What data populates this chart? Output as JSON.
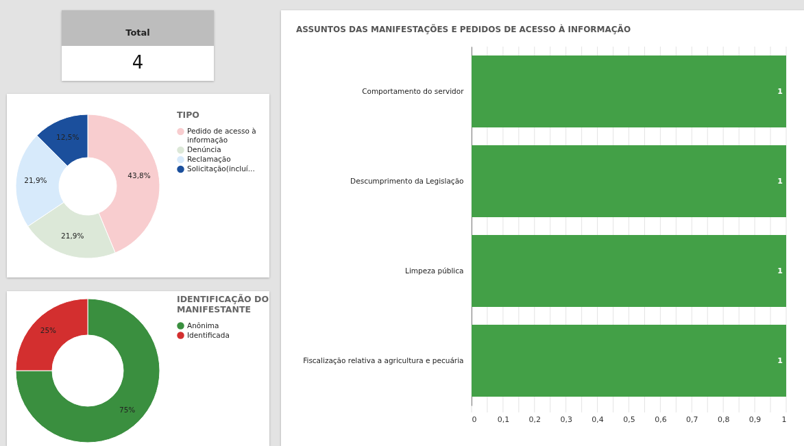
{
  "chart_data": [
    {
      "type": "other",
      "title": "Total",
      "values": [
        4
      ],
      "data_labels": true
    },
    {
      "type": "donut",
      "legend_title": "TIPO",
      "legend": "right",
      "categories": [
        "Pedido de acesso à informação",
        "Denúncia",
        "Reclamação",
        "Solicitação(incluí..."
      ],
      "values": [
        43.8,
        21.9,
        21.9,
        12.5
      ],
      "colors": [
        "#f8cdcf",
        "#dce8d8",
        "#d7eafb",
        "#1b4f9c"
      ],
      "value_labels": [
        "43,8%",
        "21,9%",
        "21,9%",
        "12,5%"
      ]
    },
    {
      "type": "donut",
      "legend_title": "IDENTIFICAÇÃO DO MANIFESTANTE",
      "legend": "right",
      "categories": [
        "Anônima",
        "Identificada"
      ],
      "values": [
        75,
        25
      ],
      "colors": [
        "#3a8f3f",
        "#d32f2f"
      ],
      "value_labels": [
        "75%",
        "25%"
      ]
    },
    {
      "type": "bar",
      "orientation": "horizontal",
      "title": "ASSUNTOS DAS MANIFESTAÇÕES E PEDIDOS DE ACESSO À INFORMAÇÃO",
      "categories": [
        "Comportamento do servidor",
        "Descumprimento da Legislação",
        "Limpeza pública",
        "Fiscalização relativa a agricultura e pecuária"
      ],
      "values": [
        1,
        1,
        1,
        1
      ],
      "colors": [
        "#43a047",
        "#43a047",
        "#43a047",
        "#43a047"
      ],
      "data_labels": true,
      "grid": "x",
      "xlim": [
        0,
        1
      ],
      "xticks": [
        0,
        {
          "value": 0.05,
          "label": null
        },
        {
          "value": 0.1,
          "label": "0,1"
        },
        {
          "value": 0.15,
          "label": null
        },
        {
          "value": 0.2,
          "label": "0,2"
        },
        {
          "value": 0.25,
          "label": null
        },
        {
          "value": 0.3,
          "label": "0,3"
        },
        {
          "value": 0.35,
          "label": null
        },
        {
          "value": 0.4,
          "label": "0,4"
        },
        {
          "value": 0.45,
          "label": null
        },
        {
          "value": 0.5,
          "label": "0,5"
        },
        {
          "value": 0.55,
          "label": null
        },
        {
          "value": 0.6,
          "label": "0,6"
        },
        {
          "value": 0.65,
          "label": null
        },
        {
          "value": 0.7,
          "label": "0,7"
        },
        {
          "value": 0.75,
          "label": null
        },
        {
          "value": 0.8,
          "label": "0,8"
        },
        {
          "value": 0.85,
          "label": null
        },
        {
          "value": 0.9,
          "label": "0,9"
        },
        {
          "value": 0.95,
          "label": null
        },
        1
      ]
    }
  ]
}
